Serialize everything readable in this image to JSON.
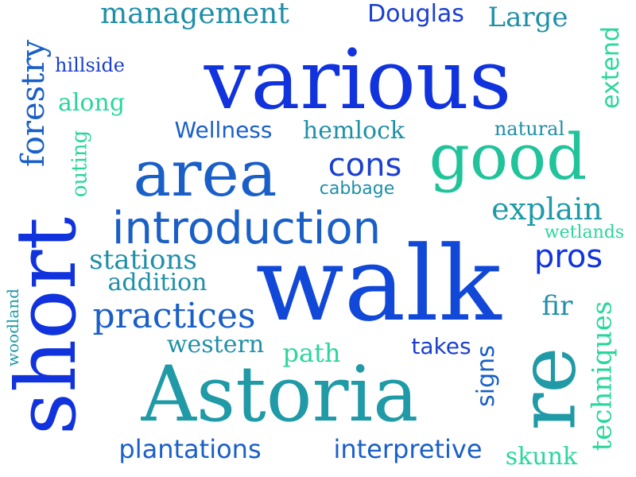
{
  "words": [
    {
      "text": "management",
      "color": "#1f8fa8"
    },
    {
      "text": "Douglas",
      "color": "#1a3fd0"
    },
    {
      "text": "Large",
      "color": "#1f8fa8"
    },
    {
      "text": "various",
      "color": "#1133dd"
    },
    {
      "text": "hillside",
      "color": "#1a3fd0"
    },
    {
      "text": "along",
      "color": "#2ad79a"
    },
    {
      "text": "forestry",
      "color": "#1a5fc8"
    },
    {
      "text": "extend",
      "color": "#2ad79a"
    },
    {
      "text": "Wellness",
      "color": "#1a5fc8"
    },
    {
      "text": "hemlock",
      "color": "#1f8fa8"
    },
    {
      "text": "natural",
      "color": "#1f8fa8"
    },
    {
      "text": "outing",
      "color": "#2ad79a"
    },
    {
      "text": "area",
      "color": "#1a5fc8"
    },
    {
      "text": "good",
      "color": "#20c39a"
    },
    {
      "text": "cons",
      "color": "#1a3fd0"
    },
    {
      "text": "cabbage",
      "color": "#1f8fa8"
    },
    {
      "text": "explain",
      "color": "#1f9aa6"
    },
    {
      "text": "introduction",
      "color": "#1a5fc8"
    },
    {
      "text": "wetlands",
      "color": "#2ad79a"
    },
    {
      "text": "short",
      "color": "#1133dd"
    },
    {
      "text": "stations",
      "color": "#1f8fa8"
    },
    {
      "text": "pros",
      "color": "#1133dd"
    },
    {
      "text": "walk",
      "color": "#1148d8"
    },
    {
      "text": "addition",
      "color": "#1f8fa8"
    },
    {
      "text": "fir",
      "color": "#1f8fa8"
    },
    {
      "text": "practices",
      "color": "#1a5fc8"
    },
    {
      "text": "techniques",
      "color": "#2ad79a"
    },
    {
      "text": "woodland",
      "color": "#1f9aa6"
    },
    {
      "text": "western",
      "color": "#1f8fa8"
    },
    {
      "text": "path",
      "color": "#2ad79a"
    },
    {
      "text": "takes",
      "color": "#1a3fd0"
    },
    {
      "text": "signs",
      "color": "#1a5fc8"
    },
    {
      "text": "re",
      "color": "#1f9aa6"
    },
    {
      "text": "Astoria",
      "color": "#1f9aa6"
    },
    {
      "text": "plantations",
      "color": "#1a5fc8"
    },
    {
      "text": "interpretive",
      "color": "#1a5fc8"
    },
    {
      "text": "skunk",
      "color": "#2ad79a"
    }
  ]
}
